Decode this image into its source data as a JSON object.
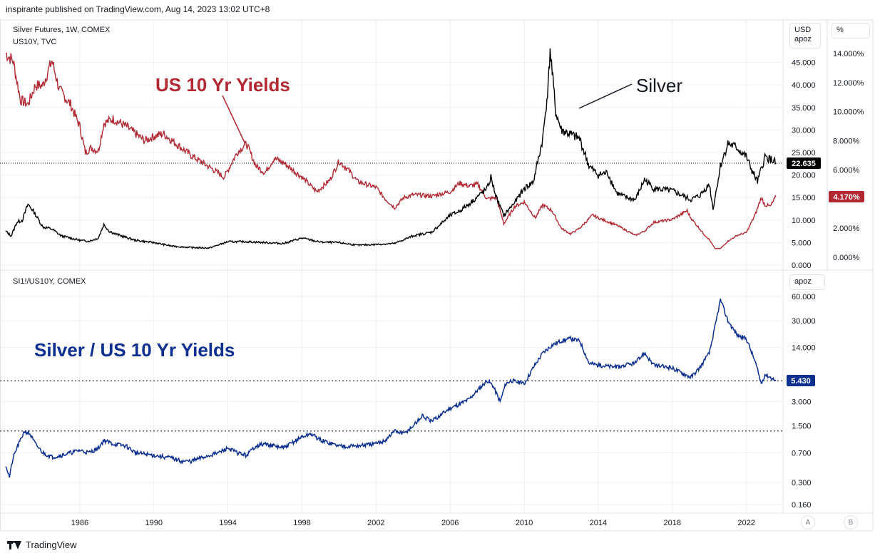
{
  "header": {
    "published": "inspirante published on TradingView.com, Aug 14, 2023 13:02 UTC+8"
  },
  "footer": {
    "brand": "TradingView"
  },
  "colors": {
    "silver": "#000000",
    "yields": "#b22833",
    "ratio": "#0d2f8f",
    "grid": "#eef0f4",
    "axis_text": "#131722"
  },
  "panes": {
    "top": {
      "legend1": "Silver Futures, 1W, COMEX",
      "legend2": "US10Y, TVC",
      "unit_left": "USD",
      "unit_left2": "apoz",
      "unit_right": "%",
      "annotation_yields": "US 10 Yr Yields",
      "annotation_silver": "Silver",
      "silver_last": "22.635",
      "yield_last": "4.170%"
    },
    "bottom": {
      "legend": "SI1!/US10Y, COMEX",
      "unit": "apoz",
      "annotation": "Silver / US 10 Yr Yields",
      "ratio_last": "5.430"
    }
  },
  "buttons": {
    "a": "A",
    "b": "B"
  },
  "chart_data": [
    {
      "type": "line",
      "title": "Silver Futures, 1W, COMEX",
      "ylabel": "USD apoz",
      "ylim": [
        0,
        50
      ],
      "y_ticks": [
        "0.000",
        "5.000",
        "10.000",
        "15.000",
        "20.000",
        "25.000",
        "30.000",
        "35.000",
        "40.000",
        "45.000"
      ],
      "x_ticks": [
        "1986",
        "1990",
        "1994",
        "1998",
        "2002",
        "2006",
        "2010",
        "2014",
        "2018",
        "2022"
      ],
      "series": [
        {
          "name": "Silver",
          "x": [
            1982.0,
            1982.3,
            1982.6,
            1982.9,
            1983.2,
            1983.5,
            1984.0,
            1984.5,
            1985.0,
            1985.5,
            1986.0,
            1986.5,
            1987.0,
            1987.3,
            1987.6,
            1988.0,
            1989.0,
            1990.0,
            1991.0,
            1992.0,
            1993.0,
            1993.5,
            1994.0,
            1995.0,
            1996.0,
            1997.0,
            1998.0,
            1999.0,
            2000.0,
            2001.0,
            2002.0,
            2003.0,
            2004.0,
            2005.0,
            2006.0,
            2006.5,
            2007.0,
            2008.0,
            2008.2,
            2008.5,
            2008.9,
            2009.5,
            2010.0,
            2010.5,
            2011.0,
            2011.3,
            2011.4,
            2011.7,
            2012.0,
            2012.5,
            2013.0,
            2013.5,
            2014.0,
            2014.5,
            2015.0,
            2015.5,
            2016.0,
            2016.5,
            2017.0,
            2018.0,
            2019.0,
            2019.5,
            2020.0,
            2020.2,
            2020.6,
            2021.0,
            2021.5,
            2022.0,
            2022.3,
            2022.6,
            2023.0,
            2023.3,
            2023.6
          ],
          "values": [
            7.5,
            6.5,
            9.5,
            10.0,
            13.5,
            12.0,
            8.5,
            8.0,
            6.5,
            6.0,
            5.5,
            5.3,
            6.0,
            9.0,
            7.5,
            6.8,
            5.5,
            5.0,
            4.2,
            3.9,
            3.8,
            4.5,
            5.2,
            5.2,
            5.0,
            4.8,
            6.0,
            5.1,
            5.0,
            4.4,
            4.6,
            4.8,
            6.5,
            7.3,
            11.0,
            12.0,
            13.5,
            17.0,
            19.5,
            15.0,
            11.0,
            14.0,
            17.0,
            18.5,
            28.0,
            40.0,
            48.0,
            34.0,
            30.0,
            29.0,
            28.0,
            22.0,
            20.0,
            20.5,
            16.0,
            15.0,
            14.5,
            19.0,
            17.0,
            16.5,
            14.5,
            15.5,
            18.0,
            12.5,
            22.0,
            27.0,
            26.0,
            24.0,
            21.0,
            18.5,
            24.0,
            23.5,
            22.635
          ]
        },
        {
          "name": "US 10 Yr Yields",
          "x": [
            1982.0,
            1982.4,
            1982.8,
            1983.2,
            1983.6,
            1984.0,
            1984.5,
            1984.9,
            1985.5,
            1986.0,
            1986.3,
            1986.6,
            1987.0,
            1987.3,
            1987.8,
            1988.5,
            1989.0,
            1989.5,
            1990.0,
            1990.5,
            1991.0,
            1991.5,
            1992.0,
            1993.0,
            1993.8,
            1994.5,
            1995.0,
            1995.5,
            1996.0,
            1996.5,
            1997.0,
            1998.0,
            1998.8,
            1999.5,
            2000.0,
            2000.5,
            2001.0,
            2002.0,
            2002.5,
            2003.0,
            2003.5,
            2004.0,
            2005.0,
            2006.0,
            2006.5,
            2007.0,
            2007.5,
            2008.0,
            2008.5,
            2008.9,
            2009.5,
            2010.0,
            2010.6,
            2011.0,
            2011.5,
            2012.0,
            2012.5,
            2013.0,
            2013.7,
            2014.0,
            2015.0,
            2016.0,
            2016.5,
            2017.0,
            2018.0,
            2018.8,
            2019.0,
            2019.7,
            2020.0,
            2020.3,
            2020.6,
            2021.0,
            2021.5,
            2022.0,
            2022.5,
            2022.8,
            2023.0,
            2023.3,
            2023.6
          ],
          "values": [
            14.0,
            13.5,
            10.8,
            10.5,
            11.8,
            11.8,
            13.5,
            11.5,
            10.5,
            9.0,
            7.2,
            7.5,
            7.3,
            9.2,
            9.5,
            9.0,
            8.5,
            8.0,
            8.3,
            8.5,
            8.0,
            7.5,
            7.0,
            6.2,
            5.5,
            7.2,
            7.8,
            6.3,
            5.8,
            6.8,
            6.5,
            5.5,
            4.5,
            5.3,
            6.6,
            6.0,
            5.2,
            4.8,
            4.0,
            3.4,
            4.1,
            4.3,
            4.2,
            4.5,
            5.1,
            4.9,
            5.0,
            4.0,
            4.1,
            2.3,
            3.5,
            3.8,
            2.7,
            3.6,
            3.2,
            2.0,
            1.6,
            2.0,
            2.9,
            2.7,
            2.2,
            1.5,
            1.8,
            2.4,
            2.6,
            3.2,
            2.7,
            1.6,
            1.2,
            0.6,
            0.6,
            1.1,
            1.5,
            1.7,
            3.0,
            4.1,
            3.6,
            3.5,
            4.17
          ]
        }
      ],
      "y2lim": [
        -1.0,
        15.0
      ],
      "y2_ticks": [
        "0.000%",
        "2.000%",
        "4.000%",
        "6.000%",
        "8.000%",
        "10.000%",
        "12.000%",
        "14.000%"
      ],
      "annotations": [
        "US 10 Yr Yields",
        "Silver"
      ],
      "grid": true
    },
    {
      "type": "line",
      "title": "SI1!/US10Y, COMEX",
      "ylabel": "apoz",
      "log_scale": true,
      "ylim": [
        0.12,
        80
      ],
      "y_ticks": [
        "0.160",
        "0.300",
        "0.700",
        "1.500",
        "3.000",
        "14.000",
        "30.000",
        "60.000"
      ],
      "series": [
        {
          "name": "Silver / US 10 Yr Yields",
          "x": [
            1982.0,
            1982.2,
            1982.4,
            1982.6,
            1982.8,
            1983.0,
            1983.3,
            1983.6,
            1984.0,
            1984.5,
            1985.0,
            1985.5,
            1986.0,
            1986.5,
            1987.0,
            1987.3,
            1987.8,
            1988.5,
            1989.0,
            1990.0,
            1991.0,
            1991.5,
            1992.0,
            1993.0,
            1993.5,
            1994.0,
            1994.5,
            1995.0,
            1995.5,
            1996.0,
            1997.0,
            1998.0,
            1998.5,
            1999.0,
            2000.0,
            2001.0,
            2002.0,
            2002.5,
            2003.0,
            2003.5,
            2004.0,
            2004.5,
            2005.0,
            2006.0,
            2006.5,
            2007.0,
            2008.0,
            2008.3,
            2008.7,
            2009.0,
            2009.3,
            2010.0,
            2010.5,
            2011.0,
            2011.5,
            2012.0,
            2012.5,
            2013.0,
            2013.5,
            2014.0,
            2015.0,
            2016.0,
            2016.5,
            2017.0,
            2018.0,
            2019.0,
            2019.5,
            2020.0,
            2020.3,
            2020.6,
            2021.0,
            2021.5,
            2022.0,
            2022.5,
            2022.8,
            2023.0,
            2023.3,
            2023.6
          ],
          "values": [
            0.5,
            0.35,
            0.6,
            0.8,
            1.0,
            1.3,
            1.2,
            0.9,
            0.7,
            0.62,
            0.65,
            0.7,
            0.75,
            0.7,
            0.8,
            1.0,
            0.9,
            0.85,
            0.7,
            0.65,
            0.6,
            0.55,
            0.55,
            0.65,
            0.7,
            0.8,
            0.7,
            0.65,
            0.85,
            0.9,
            0.8,
            1.1,
            1.2,
            1.0,
            0.85,
            0.85,
            0.9,
            1.0,
            1.3,
            1.2,
            1.5,
            2.0,
            1.7,
            2.5,
            2.8,
            3.2,
            5.5,
            4.8,
            3.0,
            5.0,
            5.5,
            5.0,
            8.0,
            12.0,
            15.0,
            17.0,
            18.0,
            17.0,
            9.0,
            8.5,
            8.0,
            9.0,
            12.0,
            8.5,
            7.8,
            6.0,
            8.0,
            12.0,
            25.0,
            55.0,
            30.0,
            20.0,
            18.0,
            9.0,
            5.0,
            6.5,
            6.0,
            5.43
          ]
        }
      ],
      "reference_lines": [
        5.43,
        1.3
      ],
      "grid": true
    }
  ]
}
